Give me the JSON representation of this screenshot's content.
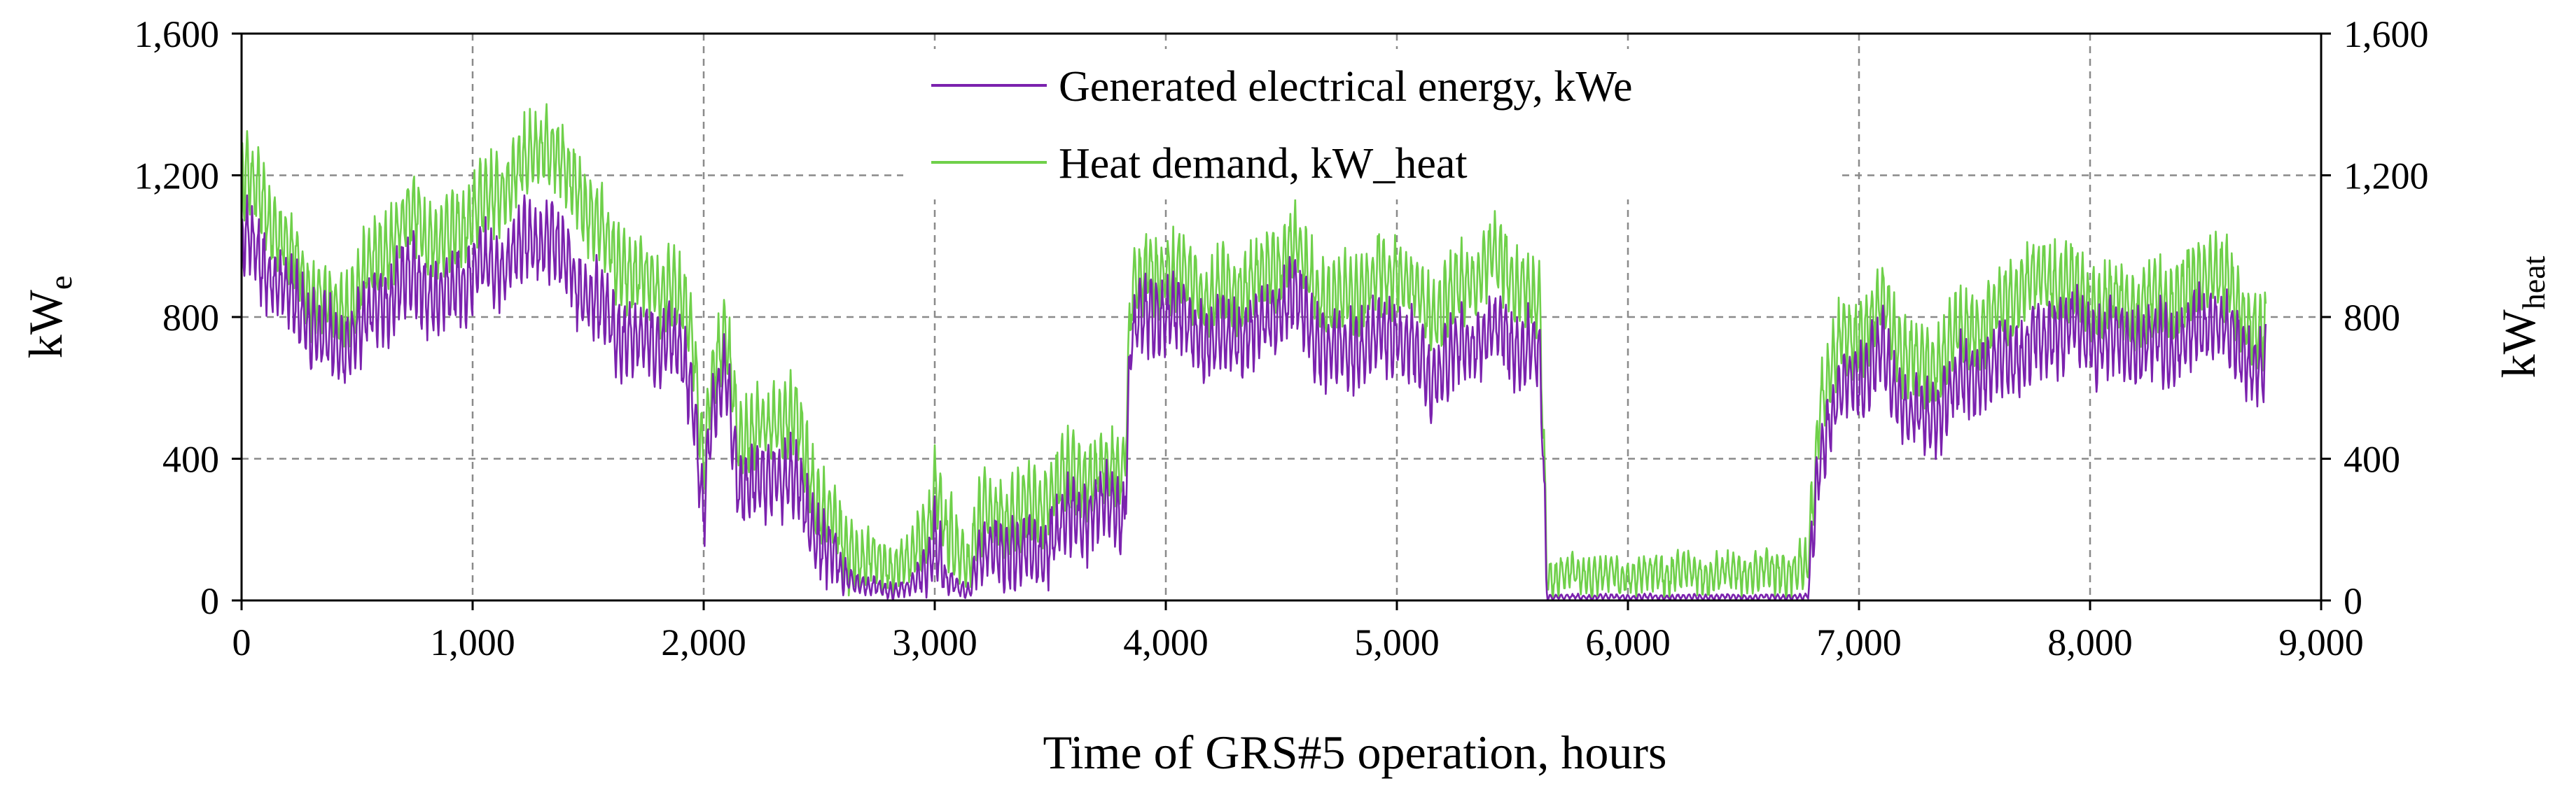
{
  "chart_data": {
    "type": "line",
    "title": "",
    "xlabel": "Time of GRS#5 operation, hours",
    "ylabel_left": {
      "main": "kW",
      "sub": "e"
    },
    "ylabel_right": {
      "main": "kW",
      "sub": "heat"
    },
    "xlim": [
      0,
      9000
    ],
    "ylim": [
      0,
      1600
    ],
    "y2lim": [
      0,
      1600
    ],
    "x_ticks": [
      0,
      1000,
      2000,
      3000,
      4000,
      5000,
      6000,
      7000,
      8000,
      9000
    ],
    "x_tick_labels": [
      "0",
      "1,000",
      "2,000",
      "3,000",
      "4,000",
      "5,000",
      "6,000",
      "7,000",
      "8,000",
      "9,000"
    ],
    "y_ticks": [
      0,
      400,
      800,
      1200,
      1600
    ],
    "y_tick_labels": [
      "0",
      "400",
      "800",
      "1,200",
      "1,600"
    ],
    "grid": true,
    "legend_position": "top-center",
    "daily_oscillation_amplitude": 90,
    "series": [
      {
        "name": "Generated electrical energy, kWe",
        "color": "#7b22ae",
        "envelope_x": [
          0,
          60,
          150,
          300,
          420,
          600,
          750,
          850,
          950,
          1100,
          1250,
          1320,
          1420,
          1550,
          1700,
          1850,
          1950,
          2000,
          2030,
          2100,
          2150,
          2200,
          2300,
          2400,
          2500,
          2600,
          2700,
          2800,
          2900,
          2980,
          3000,
          3050,
          3150,
          3180,
          3300,
          3450,
          3550,
          3700,
          3820,
          3850,
          4000,
          4200,
          4400,
          4550,
          4700,
          4850,
          5000,
          5150,
          5300,
          5450,
          5550,
          5620,
          5650,
          5800,
          6000,
          6200,
          6400,
          6600,
          6780,
          6830,
          6900,
          7000,
          7100,
          7200,
          7300,
          7400,
          7550,
          7700,
          7850,
          8000,
          8200,
          8400,
          8550,
          8650,
          8750
        ],
        "envelope_y": [
          1030,
          980,
          900,
          780,
          700,
          830,
          920,
          840,
          900,
          950,
          1000,
          1040,
          930,
          820,
          720,
          740,
          600,
          260,
          480,
          640,
          330,
          300,
          360,
          330,
          160,
          80,
          40,
          30,
          35,
          120,
          200,
          50,
          30,
          110,
          140,
          130,
          220,
          250,
          260,
          760,
          820,
          730,
          760,
          860,
          700,
          720,
          760,
          630,
          720,
          770,
          700,
          690,
          10,
          10,
          10,
          10,
          10,
          10,
          10,
          430,
          560,
          630,
          690,
          540,
          500,
          600,
          650,
          700,
          760,
          740,
          720,
          730,
          800,
          700,
          640
        ],
        "values_note": "hourly series drawn from this envelope with a daily oscillation"
      },
      {
        "name": "Heat demand, kW_heat",
        "color": "#6fd04a",
        "envelope_x": [
          0,
          60,
          150,
          300,
          420,
          600,
          750,
          850,
          950,
          1100,
          1250,
          1320,
          1420,
          1550,
          1700,
          1850,
          1950,
          2000,
          2030,
          2100,
          2150,
          2200,
          2300,
          2400,
          2500,
          2600,
          2700,
          2800,
          2900,
          2980,
          3000,
          3050,
          3150,
          3180,
          3300,
          3450,
          3550,
          3700,
          3820,
          3850,
          4000,
          4200,
          4400,
          4550,
          4700,
          4850,
          5000,
          5150,
          5300,
          5450,
          5550,
          5620,
          5650,
          5800,
          6000,
          6200,
          6400,
          6600,
          6780,
          6830,
          6900,
          7000,
          7100,
          7200,
          7300,
          7400,
          7550,
          7700,
          7850,
          8000,
          8200,
          8400,
          8550,
          8650,
          8750
        ],
        "envelope_y": [
          1200,
          1160,
          1050,
          880,
          800,
          980,
          1100,
          1000,
          1060,
          1150,
          1250,
          1300,
          1200,
          1040,
          900,
          880,
          780,
          400,
          600,
          760,
          480,
          450,
          520,
          500,
          280,
          170,
          110,
          100,
          110,
          250,
          330,
          170,
          100,
          220,
          250,
          260,
          340,
          360,
          380,
          880,
          950,
          860,
          900,
          1000,
          840,
          880,
          940,
          800,
          900,
          960,
          880,
          820,
          70,
          75,
          70,
          80,
          75,
          80,
          90,
          560,
          700,
          760,
          830,
          700,
          640,
          740,
          790,
          880,
          920,
          850,
          830,
          860,
          940,
          820,
          760
        ],
        "values_note": "hourly series drawn from this envelope with a daily oscillation"
      }
    ]
  }
}
